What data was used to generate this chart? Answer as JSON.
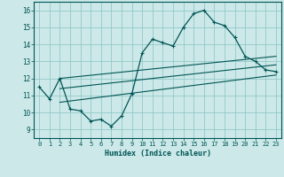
{
  "xlabel": "Humidex (Indice chaleur)",
  "ylabel": "",
  "bg_color": "#cce8e8",
  "grid_color": "#88c4c4",
  "line_color": "#005555",
  "xlim": [
    -0.5,
    23.5
  ],
  "ylim": [
    8.5,
    16.5
  ],
  "yticks": [
    9,
    10,
    11,
    12,
    13,
    14,
    15,
    16
  ],
  "xticks": [
    0,
    1,
    2,
    3,
    4,
    5,
    6,
    7,
    8,
    9,
    10,
    11,
    12,
    13,
    14,
    15,
    16,
    17,
    18,
    19,
    20,
    21,
    22,
    23
  ],
  "main_line_x": [
    0,
    1,
    2,
    3,
    4,
    5,
    6,
    7,
    8,
    9,
    10,
    11,
    12,
    13,
    14,
    15,
    16,
    17,
    18,
    19,
    20,
    21,
    22,
    23
  ],
  "main_line_y": [
    11.5,
    10.8,
    12.0,
    10.2,
    10.1,
    9.5,
    9.6,
    9.2,
    9.8,
    11.1,
    13.5,
    14.3,
    14.1,
    13.9,
    15.0,
    15.8,
    16.0,
    15.3,
    15.1,
    14.4,
    13.3,
    13.0,
    12.5,
    12.4
  ],
  "trend1_x": [
    2,
    23
  ],
  "trend1_y": [
    12.0,
    13.3
  ],
  "trend2_x": [
    2,
    23
  ],
  "trend2_y": [
    11.4,
    12.8
  ],
  "trend3_x": [
    2,
    23
  ],
  "trend3_y": [
    10.6,
    12.2
  ]
}
